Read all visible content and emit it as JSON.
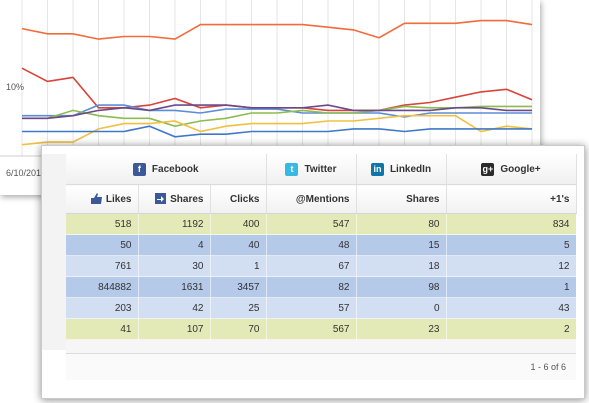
{
  "chart": {
    "y_tick_label": "10%",
    "x_tick_label": "6/10/201",
    "gridline_count": 20,
    "series": [
      {
        "color": "#f26b3a",
        "values": [
          0.92,
          0.88,
          0.88,
          0.84,
          0.86,
          0.86,
          0.84,
          0.95,
          0.95,
          0.95,
          0.95,
          0.95,
          0.93,
          0.91,
          0.85,
          0.96,
          0.96,
          0.96,
          0.98,
          0.98,
          0.95
        ]
      },
      {
        "color": "#d9433a",
        "values": [
          0.62,
          0.52,
          0.55,
          0.32,
          0.32,
          0.34,
          0.39,
          0.32,
          0.34,
          0.32,
          0.32,
          0.32,
          0.3,
          0.3,
          0.3,
          0.34,
          0.36,
          0.4,
          0.44,
          0.46,
          0.38
        ]
      },
      {
        "color": "#5b8ed6",
        "values": [
          0.26,
          0.26,
          0.26,
          0.34,
          0.34,
          0.3,
          0.3,
          0.28,
          0.31,
          0.31,
          0.31,
          0.28,
          0.28,
          0.28,
          0.28,
          0.25,
          0.28,
          0.28,
          0.28,
          0.28,
          0.28
        ]
      },
      {
        "color": "#8cbc4f",
        "values": [
          0.24,
          0.24,
          0.3,
          0.26,
          0.24,
          0.24,
          0.18,
          0.22,
          0.24,
          0.28,
          0.28,
          0.3,
          0.28,
          0.28,
          0.3,
          0.33,
          0.32,
          0.32,
          0.33,
          0.33,
          0.33
        ]
      },
      {
        "color": "#6a4a8a",
        "values": [
          0.24,
          0.24,
          0.26,
          0.3,
          0.32,
          0.3,
          0.34,
          0.34,
          0.34,
          0.32,
          0.32,
          0.32,
          0.34,
          0.3,
          0.3,
          0.3,
          0.3,
          0.32,
          0.32,
          0.3,
          0.3
        ]
      },
      {
        "color": "#f0c040",
        "values": [
          0.04,
          0.06,
          0.06,
          0.16,
          0.2,
          0.2,
          0.22,
          0.14,
          0.18,
          0.2,
          0.2,
          0.2,
          0.22,
          0.22,
          0.24,
          0.26,
          0.26,
          0.26,
          0.14,
          0.18,
          0.16
        ]
      },
      {
        "color": "#3f78c8",
        "values": [
          0.14,
          0.14,
          0.14,
          0.14,
          0.14,
          0.18,
          0.1,
          0.12,
          0.12,
          0.14,
          0.14,
          0.14,
          0.14,
          0.16,
          0.16,
          0.14,
          0.16,
          0.16,
          0.16,
          0.16,
          0.16
        ]
      }
    ]
  },
  "table": {
    "networks": [
      {
        "label": "Facebook",
        "icon": "facebook-icon",
        "glyph": "f"
      },
      {
        "label": "Twitter",
        "icon": "twitter-icon",
        "glyph": "t"
      },
      {
        "label": "LinkedIn",
        "icon": "linkedin-icon",
        "glyph": "in"
      },
      {
        "label": "Google+",
        "icon": "google-plus-icon",
        "glyph": "g+"
      }
    ],
    "columns": [
      "Likes",
      "Shares",
      "Clicks",
      "@Mentions",
      "Shares",
      "+1's"
    ],
    "rows": [
      {
        "style": "r-green",
        "cells": [
          "518",
          "1192",
          "400",
          "547",
          "80",
          "834"
        ]
      },
      {
        "style": "r-blue",
        "cells": [
          "50",
          "4",
          "40",
          "48",
          "15",
          "5"
        ]
      },
      {
        "style": "r-light",
        "cells": [
          "761",
          "30",
          "1",
          "67",
          "18",
          "12"
        ]
      },
      {
        "style": "r-blue",
        "cells": [
          "844882",
          "1631",
          "3457",
          "82",
          "98",
          "1"
        ]
      },
      {
        "style": "r-light",
        "cells": [
          "203",
          "42",
          "25",
          "57",
          "0",
          "43"
        ]
      },
      {
        "style": "r-green",
        "cells": [
          "41",
          "107",
          "70",
          "567",
          "23",
          "2"
        ]
      }
    ],
    "pager_text": "1 - 6 of 6"
  }
}
